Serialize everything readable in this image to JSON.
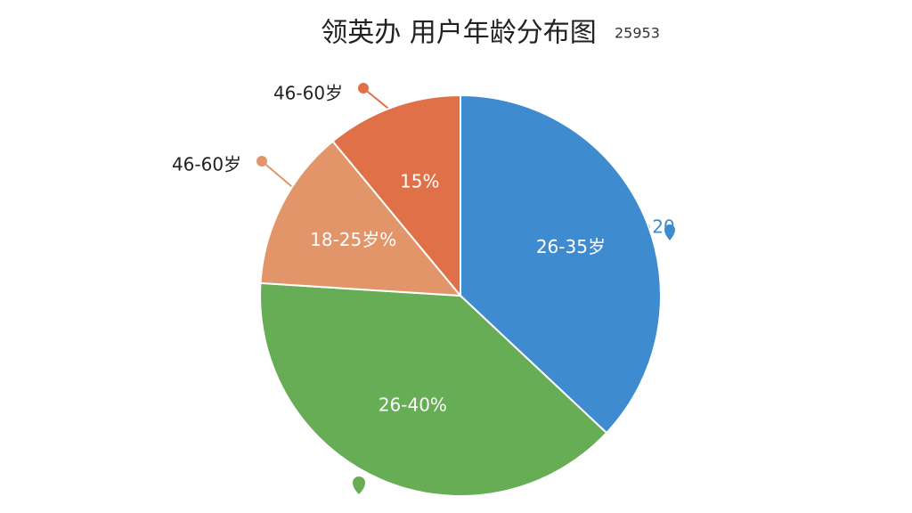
{
  "chart_data": {
    "type": "pie",
    "title": "领英办 用户年龄分布图",
    "subtitle": "25953",
    "categories": [
      "26-35岁",
      "26-40%",
      "18-25岁%",
      "15%"
    ],
    "values": [
      37,
      39,
      13,
      11
    ],
    "colors": [
      "#3f8bcf",
      "#67ad55",
      "#e3956a",
      "#e07048"
    ],
    "annotations": [
      "46-60岁",
      "46-60岁",
      "20"
    ]
  }
}
